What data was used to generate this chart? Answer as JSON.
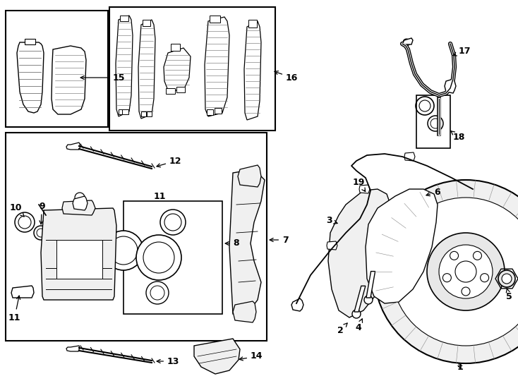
{
  "bg_color": "#ffffff",
  "line_color": "#000000",
  "fig_width": 7.34,
  "fig_height": 5.4,
  "dpi": 100
}
